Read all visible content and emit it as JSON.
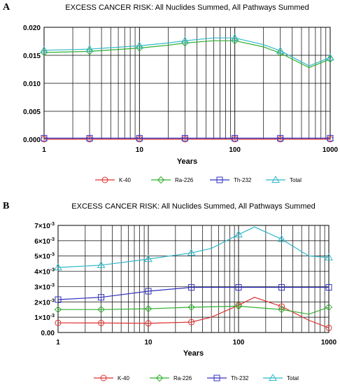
{
  "chart_data": [
    {
      "panel_label": "A",
      "type": "line",
      "title": "EXCESS CANCER RISK: All Nuclides Summed, All Pathways Summed",
      "xlabel": "Years",
      "ylabel": "",
      "x_scale": "log",
      "xlim": [
        1,
        1000
      ],
      "ylim": [
        0,
        0.02
      ],
      "x_ticks": [
        1,
        10,
        100,
        1000
      ],
      "x_tick_labels": [
        "1",
        "10",
        "100",
        "1000"
      ],
      "y_ticks": [
        0,
        0.005,
        0.01,
        0.015,
        0.02
      ],
      "y_tick_labels": [
        "0.000",
        "0.005",
        "0.010",
        "0.015",
        "0.020"
      ],
      "grid": true,
      "legend_position": "bottom",
      "series": [
        {
          "name": "K-40",
          "color": "#e03030",
          "marker": "circle",
          "x": [
            1,
            3,
            10,
            30,
            100,
            300,
            1000
          ],
          "y": [
            2e-05,
            2e-05,
            2e-05,
            2e-05,
            2e-05,
            2e-05,
            2e-05
          ],
          "x_line": [
            1,
            3,
            10,
            30,
            100,
            300,
            1000
          ],
          "y_line": [
            2e-05,
            2e-05,
            2e-05,
            2e-05,
            2e-05,
            2e-05,
            2e-05
          ]
        },
        {
          "name": "Ra-226",
          "color": "#30b030",
          "marker": "diamond",
          "x": [
            1,
            3,
            10,
            30,
            100,
            300,
            1000
          ],
          "y": [
            0.0155,
            0.0157,
            0.0163,
            0.0172,
            0.0176,
            0.0154,
            0.0143
          ],
          "x_line": [
            1,
            3,
            10,
            20,
            30,
            60,
            100,
            200,
            300,
            600,
            1000
          ],
          "y_line": [
            0.0155,
            0.0157,
            0.0163,
            0.0168,
            0.0172,
            0.0176,
            0.0176,
            0.0165,
            0.0154,
            0.0128,
            0.0143
          ]
        },
        {
          "name": "Th-232",
          "color": "#3030c0",
          "marker": "square",
          "x": [
            1,
            3,
            10,
            30,
            100,
            300,
            1000
          ],
          "y": [
            0.0002,
            0.0002,
            0.0002,
            0.0002,
            0.0002,
            0.0002,
            0.0002
          ],
          "x_line": [
            1,
            3,
            10,
            30,
            100,
            300,
            1000
          ],
          "y_line": [
            0.0002,
            0.0002,
            0.0002,
            0.0002,
            0.0002,
            0.0002,
            0.0002
          ]
        },
        {
          "name": "Total",
          "color": "#30b8c8",
          "marker": "triangle",
          "x": [
            1,
            3,
            10,
            30,
            100,
            300,
            1000
          ],
          "y": [
            0.0159,
            0.0161,
            0.0167,
            0.0176,
            0.0181,
            0.0158,
            0.0146
          ],
          "x_line": [
            1,
            3,
            10,
            20,
            30,
            60,
            100,
            200,
            300,
            600,
            1000
          ],
          "y_line": [
            0.0159,
            0.0161,
            0.0167,
            0.0172,
            0.0176,
            0.0181,
            0.0181,
            0.0169,
            0.0158,
            0.0131,
            0.0146
          ]
        }
      ]
    },
    {
      "panel_label": "B",
      "type": "line",
      "title": "EXCESS CANCER RISK: All Nuclides Summed, All Pathways Summed",
      "xlabel": "Years",
      "ylabel": "",
      "x_scale": "log",
      "xlim": [
        1,
        1000
      ],
      "ylim": [
        0,
        0.007
      ],
      "x_ticks": [
        1,
        10,
        100,
        1000
      ],
      "x_tick_labels": [
        "1",
        "10",
        "100",
        "1000"
      ],
      "y_ticks": [
        0,
        0.001,
        0.002,
        0.003,
        0.004,
        0.005,
        0.006,
        0.007
      ],
      "y_tick_labels": [
        {
          "base": "0.00",
          "exp": ""
        },
        {
          "base": "1×10",
          "exp": "-3"
        },
        {
          "base": "2×10",
          "exp": "-3"
        },
        {
          "base": "3×10",
          "exp": "-3"
        },
        {
          "base": "4×10",
          "exp": "-3"
        },
        {
          "base": "5×10",
          "exp": "-3"
        },
        {
          "base": "6×10",
          "exp": "-3"
        },
        {
          "base": "7×10",
          "exp": "-3"
        }
      ],
      "grid": true,
      "legend_position": "bottom",
      "series": [
        {
          "name": "K-40",
          "color": "#e03030",
          "marker": "circle",
          "x": [
            1,
            3,
            10,
            30,
            100,
            300,
            1000
          ],
          "y": [
            0.00063,
            0.00062,
            0.0006,
            0.00068,
            0.00178,
            0.0017,
            0.0003
          ],
          "x_line": [
            1,
            3,
            10,
            30,
            50,
            100,
            150,
            300,
            600,
            1000
          ],
          "y_line": [
            0.00063,
            0.00062,
            0.0006,
            0.00068,
            0.001,
            0.00178,
            0.0023,
            0.0017,
            0.0008,
            0.0003
          ]
        },
        {
          "name": "Ra-226",
          "color": "#30b030",
          "marker": "diamond",
          "x": [
            1,
            3,
            10,
            30,
            100,
            300,
            1000
          ],
          "y": [
            0.0015,
            0.0015,
            0.00155,
            0.00165,
            0.00172,
            0.0015,
            0.00165
          ],
          "x_line": [
            1,
            3,
            10,
            30,
            100,
            300,
            600,
            1000
          ],
          "y_line": [
            0.0015,
            0.0015,
            0.00155,
            0.00165,
            0.00172,
            0.0015,
            0.0012,
            0.00165
          ]
        },
        {
          "name": "Th-232",
          "color": "#3030c0",
          "marker": "square",
          "x": [
            1,
            3,
            10,
            30,
            100,
            300,
            1000
          ],
          "y": [
            0.00215,
            0.0023,
            0.0027,
            0.00295,
            0.00295,
            0.00295,
            0.00295
          ],
          "x_line": [
            1,
            3,
            10,
            30,
            100,
            300,
            1000
          ],
          "y_line": [
            0.00215,
            0.0023,
            0.0027,
            0.00295,
            0.00295,
            0.00295,
            0.00295
          ]
        },
        {
          "name": "Total",
          "color": "#30b8c8",
          "marker": "triangle",
          "x": [
            1,
            3,
            10,
            30,
            100,
            300,
            1000
          ],
          "y": [
            0.00425,
            0.0044,
            0.0048,
            0.0052,
            0.0064,
            0.0061,
            0.0049
          ],
          "x_line": [
            1,
            3,
            10,
            30,
            50,
            100,
            150,
            300,
            600,
            1000
          ],
          "y_line": [
            0.00425,
            0.0044,
            0.0048,
            0.0052,
            0.0055,
            0.0064,
            0.0069,
            0.0061,
            0.005,
            0.0049
          ]
        }
      ]
    }
  ]
}
